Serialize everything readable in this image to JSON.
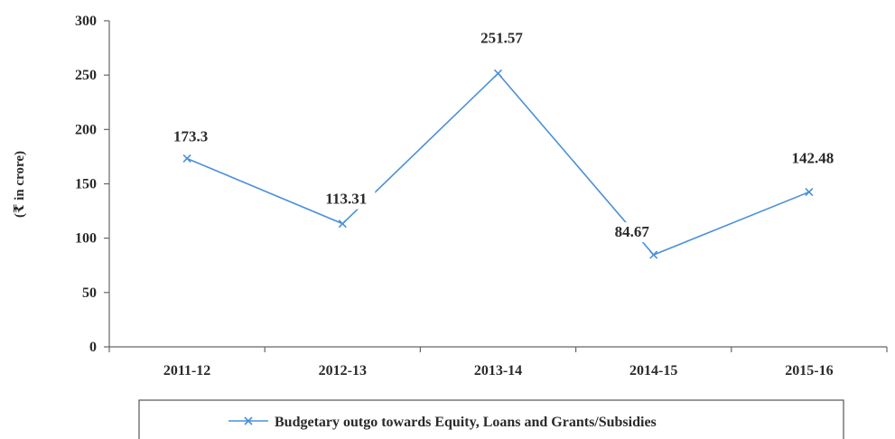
{
  "chart_data": {
    "type": "line",
    "categories": [
      "2011-12",
      "2012-13",
      "2013-14",
      "2014-15",
      "2015-16"
    ],
    "series": [
      {
        "name": "Budgetary outgo towards Equity, Loans and Grants/Subsidies",
        "values": [
          173.3,
          113.31,
          251.57,
          84.67,
          142.48
        ],
        "labels": [
          "173.3",
          "113.31",
          "251.57",
          "84.67",
          "142.48"
        ],
        "color": "#4a90d9",
        "marker": "x"
      }
    ],
    "yticks": [
      "0",
      "50",
      "100",
      "150",
      "200",
      "250",
      "300"
    ],
    "ylim": [
      0,
      300
    ],
    "ylabel": "(₹ in crore)",
    "xlabel": "",
    "title": "",
    "grid": false,
    "legend_position": "bottom"
  }
}
